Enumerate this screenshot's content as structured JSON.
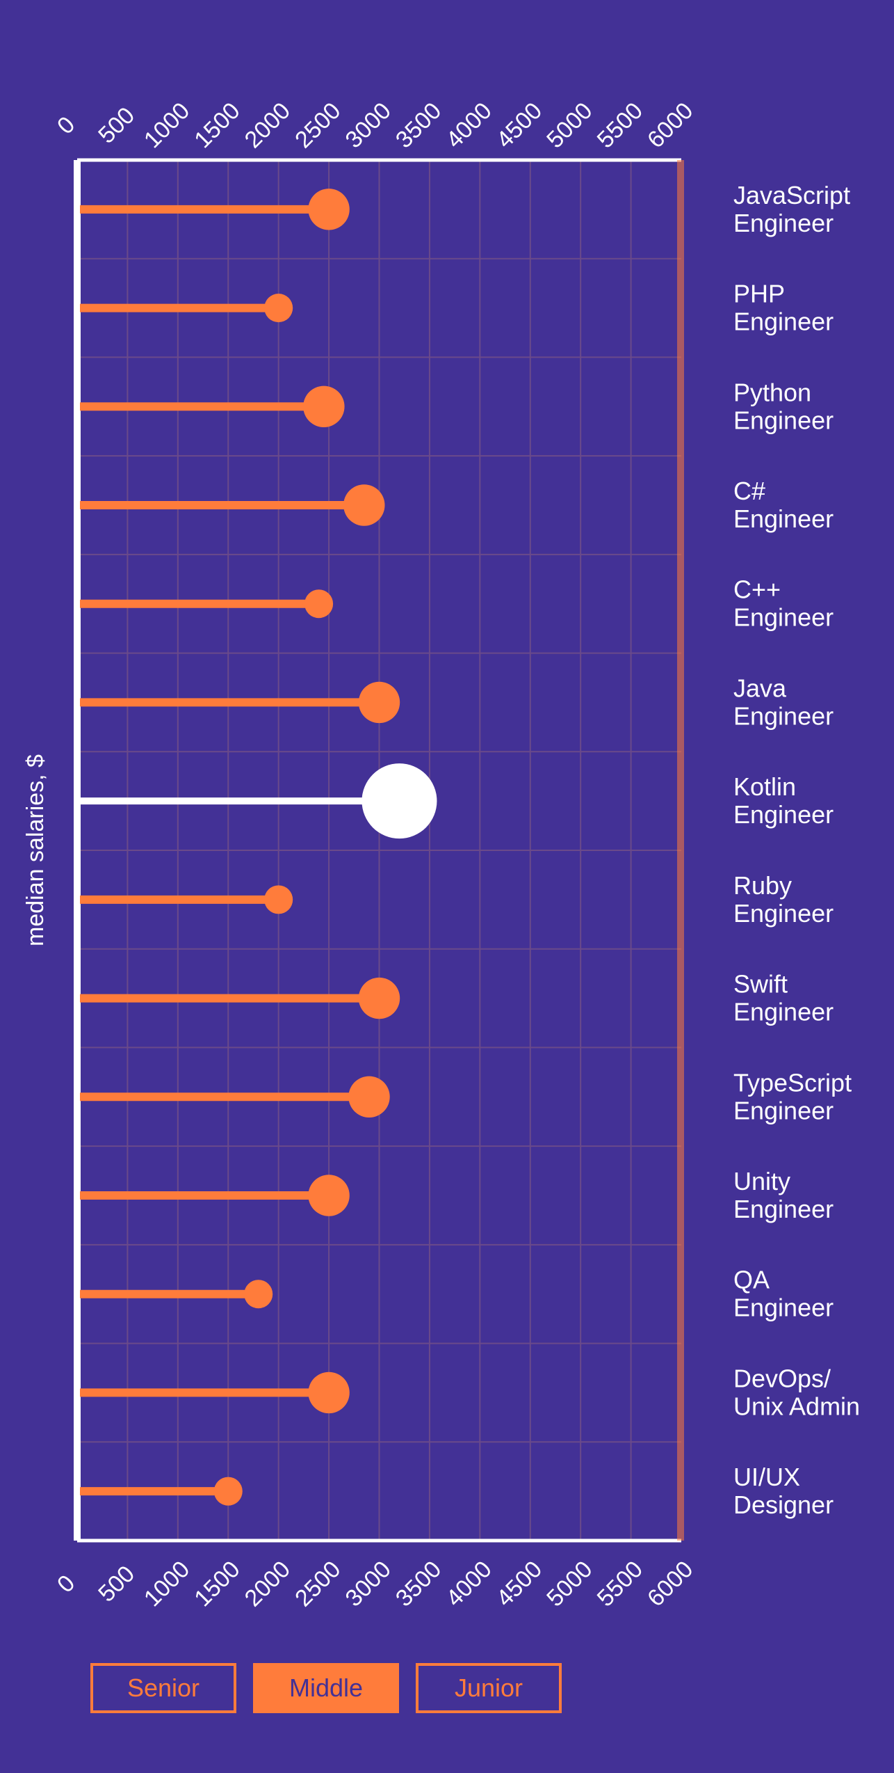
{
  "colors": {
    "background": "#433196",
    "accent": "#ff7c3b",
    "highlight": "#ffffff",
    "grid": "#6a4a8a"
  },
  "chart_data": {
    "type": "lollipop",
    "ylabel": "median salaries, $",
    "xlim": [
      0,
      6000
    ],
    "x_ticks": [
      0,
      500,
      1000,
      1500,
      2000,
      2500,
      3000,
      3500,
      4000,
      4500,
      5000,
      5500,
      6000
    ],
    "grid": true,
    "categories": [
      [
        "JavaScript",
        "Engineer"
      ],
      [
        "PHP",
        "Engineer"
      ],
      [
        "Python",
        "Engineer"
      ],
      [
        "C#",
        "Engineer"
      ],
      [
        "C++",
        "Engineer"
      ],
      [
        "Java",
        "Engineer"
      ],
      [
        "Kotlin",
        "Engineer"
      ],
      [
        "Ruby",
        "Engineer"
      ],
      [
        "Swift",
        "Engineer"
      ],
      [
        "TypeScript",
        "Engineer"
      ],
      [
        "Unity",
        "Engineer"
      ],
      [
        "QA",
        "Engineer"
      ],
      [
        "DevOps/",
        "Unix Admin"
      ],
      [
        "UI/UX",
        "Designer"
      ]
    ],
    "values": [
      2500,
      2000,
      2450,
      2850,
      2400,
      3000,
      3200,
      2000,
      3000,
      2900,
      2500,
      1800,
      2500,
      1500
    ],
    "relative_size": [
      0.55,
      0.38,
      0.55,
      0.55,
      0.38,
      0.55,
      1.0,
      0.38,
      0.55,
      0.55,
      0.55,
      0.38,
      0.55,
      0.38
    ],
    "highlighted_index": 6
  },
  "tabs": {
    "items": [
      "Senior",
      "Middle",
      "Junior"
    ],
    "active": "Middle"
  }
}
